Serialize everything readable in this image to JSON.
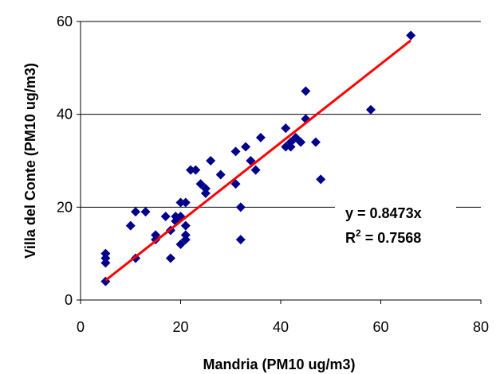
{
  "chart_data": {
    "type": "scatter",
    "xlabel": "Mandria (PM10 ug/m3)",
    "ylabel": "Villa del Conte (PM10 ug/m3)",
    "xlim": [
      0,
      80
    ],
    "ylim": [
      0,
      60
    ],
    "x_ticks": [
      0,
      20,
      40,
      60,
      80
    ],
    "y_ticks": [
      0,
      20,
      40,
      60
    ],
    "grid": "horizontal",
    "colors": {
      "points": "#00008B",
      "trendline": "#FF0000",
      "grid": "#000000"
    },
    "series": [
      {
        "points": [
          [
            5,
            4
          ],
          [
            5,
            8
          ],
          [
            5,
            9
          ],
          [
            5,
            10
          ],
          [
            10,
            16
          ],
          [
            11,
            9
          ],
          [
            11,
            19
          ],
          [
            13,
            19
          ],
          [
            15,
            13
          ],
          [
            15,
            14
          ],
          [
            17,
            18
          ],
          [
            18,
            9
          ],
          [
            18,
            15
          ],
          [
            19,
            17
          ],
          [
            19,
            18
          ],
          [
            20,
            12
          ],
          [
            20,
            18
          ],
          [
            20,
            21
          ],
          [
            21,
            13
          ],
          [
            21,
            14
          ],
          [
            21,
            16
          ],
          [
            21,
            21
          ],
          [
            22,
            28
          ],
          [
            23,
            28
          ],
          [
            24,
            25
          ],
          [
            25,
            23
          ],
          [
            25,
            24
          ],
          [
            26,
            30
          ],
          [
            28,
            27
          ],
          [
            31,
            25
          ],
          [
            31,
            32
          ],
          [
            32,
            13
          ],
          [
            32,
            20
          ],
          [
            33,
            33
          ],
          [
            34,
            30
          ],
          [
            35,
            28
          ],
          [
            36,
            35
          ],
          [
            41,
            33
          ],
          [
            41,
            37
          ],
          [
            42,
            33
          ],
          [
            42,
            34
          ],
          [
            43,
            35
          ],
          [
            44,
            34
          ],
          [
            45,
            39
          ],
          [
            45,
            45
          ],
          [
            47,
            34
          ],
          [
            48,
            26
          ],
          [
            58,
            41
          ],
          [
            66,
            57
          ]
        ]
      }
    ],
    "trendline": {
      "type": "linear",
      "slope": 0.8473,
      "x_range": [
        5,
        66
      ]
    },
    "annotations": {
      "equation": "y = 0.8473x",
      "r2_prefix": "R",
      "r2_exp": "2",
      "r2_value": " = 0.7568"
    }
  }
}
